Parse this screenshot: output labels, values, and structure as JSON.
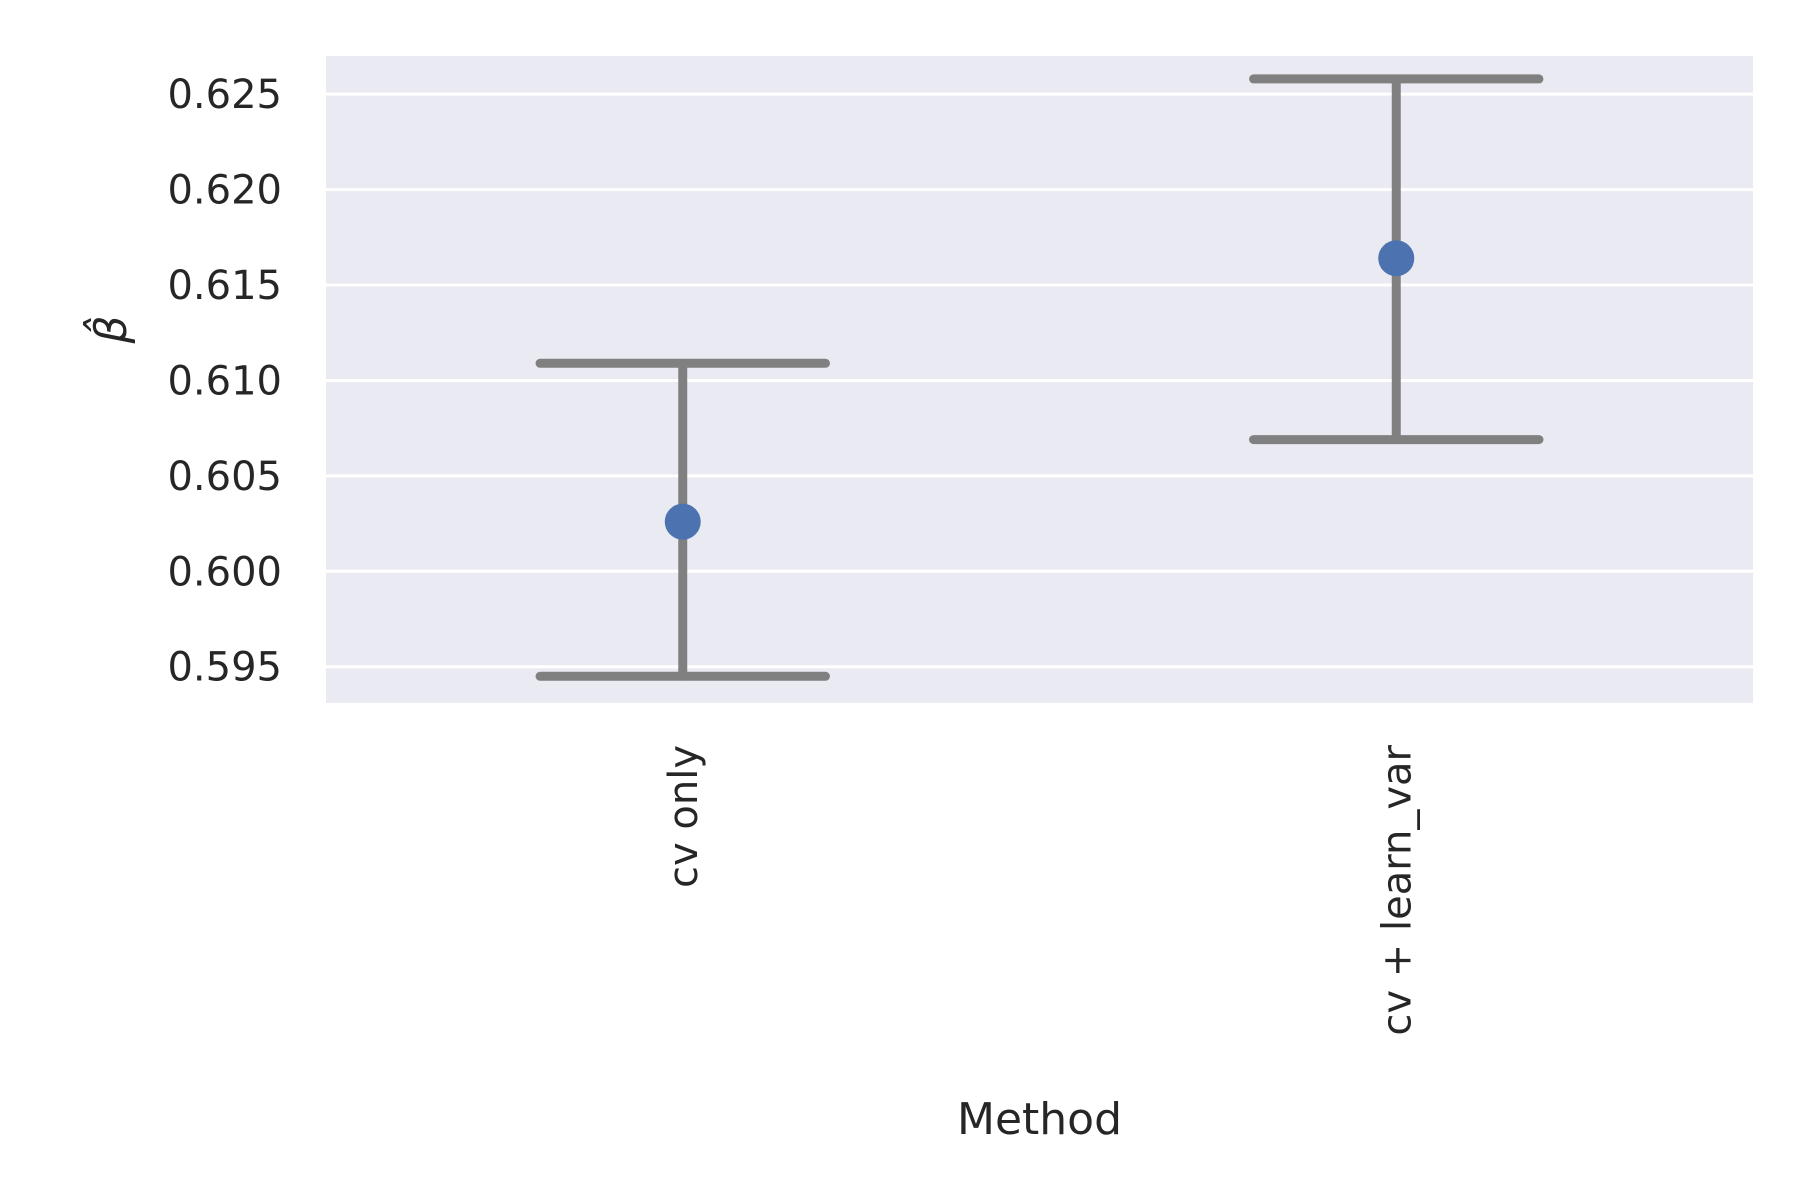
{
  "chart_data": {
    "type": "errorbar",
    "categories": [
      "cv only",
      "cv + learn_var"
    ],
    "series": [
      {
        "values": [
          0.6026,
          0.6164
        ],
        "lower": [
          0.5945,
          0.6069
        ],
        "upper": [
          0.6109,
          0.6258
        ]
      }
    ],
    "xlabel": "Method",
    "ylabel": "β̂",
    "ylim": [
      0.5931,
      0.627
    ],
    "yticks": [
      0.595,
      0.6,
      0.605,
      0.61,
      0.615,
      0.62,
      0.625
    ],
    "ytick_labels": [
      "0.595",
      "0.600",
      "0.605",
      "0.610",
      "0.615",
      "0.620",
      "0.625"
    ],
    "grid": true,
    "legend": "none",
    "colors": {
      "background": "#eaeaf2",
      "grid": "#ffffff",
      "point": "#4c72b0",
      "errorbar": "#808080",
      "text": "#262626"
    }
  }
}
